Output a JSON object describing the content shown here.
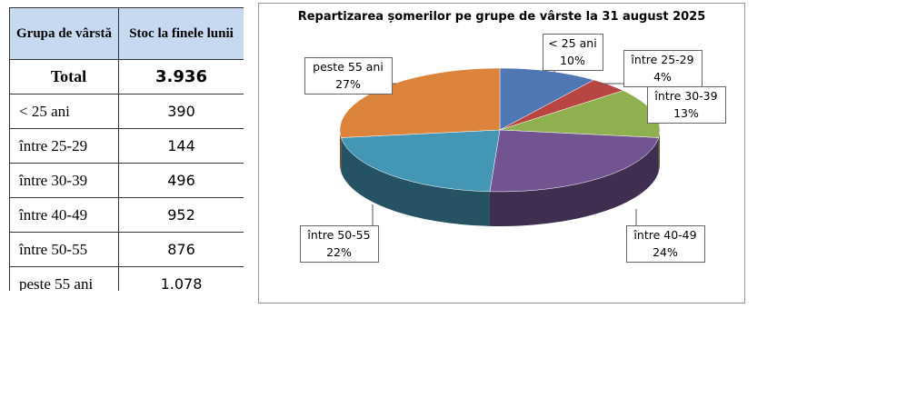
{
  "table": {
    "header": [
      "Grupa de vârstă",
      "Stoc la finele lunii"
    ],
    "rows": [
      [
        "Total",
        "3.936"
      ],
      [
        "< 25 ani",
        "390"
      ],
      [
        "între 25-29",
        "144"
      ],
      [
        "între 30-39",
        "496"
      ],
      [
        "între 40-49",
        "952"
      ],
      [
        "între 50-55",
        "876"
      ],
      [
        "peste 55 ani",
        "1.078"
      ]
    ]
  },
  "chart_data": {
    "type": "pie3d",
    "title": "Repartizarea șomerilor pe grupe de vârste la 31 august 2025",
    "categories": [
      "< 25 ani",
      "între 25-29",
      "între 30-39",
      "între 40-49",
      "între 50-55",
      "peste 55 ani"
    ],
    "values": [
      10,
      4,
      13,
      24,
      22,
      27
    ],
    "value_labels": [
      "10%",
      "4%",
      "13%",
      "24%",
      "22%",
      "27%"
    ],
    "colors": [
      "#4f77b3",
      "#b84542",
      "#8fb04e",
      "#725491",
      "#4397b4",
      "#dc843c"
    ]
  }
}
